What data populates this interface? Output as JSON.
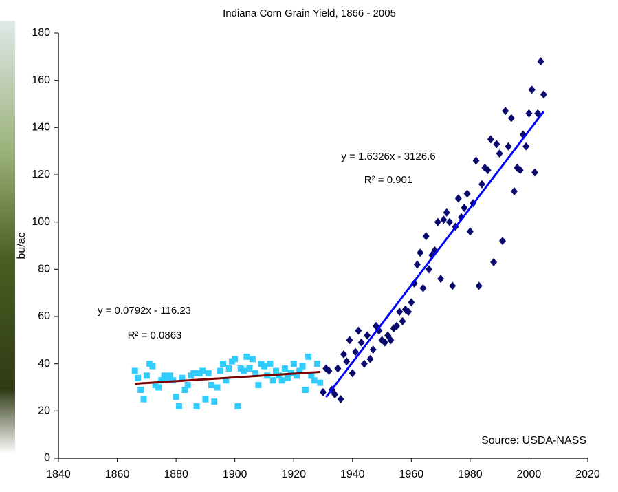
{
  "chart_data": {
    "type": "scatter",
    "title": "Indiana Corn Grain Yield, 1866 - 2005",
    "y_label": "bu/ac",
    "source": "Source: USDA-NASS",
    "xlim": [
      1840,
      2020
    ],
    "xticks": [
      1840,
      1860,
      1880,
      1900,
      1920,
      1940,
      1960,
      1980,
      2000,
      2020
    ],
    "ylim": [
      0,
      180
    ],
    "yticks": [
      0,
      20,
      40,
      60,
      80,
      100,
      120,
      140,
      160,
      180
    ],
    "grid": false,
    "series": [
      {
        "color": "#33ccff",
        "marker": "square",
        "x": [
          1866,
          1867,
          1868,
          1869,
          1870,
          1871,
          1872,
          1873,
          1874,
          1875,
          1876,
          1877,
          1878,
          1879,
          1880,
          1881,
          1882,
          1883,
          1884,
          1885,
          1886,
          1887,
          1888,
          1889,
          1890,
          1891,
          1892,
          1893,
          1894,
          1895,
          1896,
          1897,
          1898,
          1899,
          1900,
          1901,
          1902,
          1903,
          1904,
          1905,
          1906,
          1907,
          1908,
          1909,
          1910,
          1911,
          1912,
          1913,
          1914,
          1915,
          1916,
          1917,
          1918,
          1919,
          1920,
          1921,
          1922,
          1923,
          1924,
          1925,
          1926,
          1927,
          1928,
          1929
        ],
        "values": [
          37,
          34,
          29,
          25,
          35,
          40,
          39,
          31,
          30,
          33,
          35,
          34,
          35,
          33,
          26,
          22,
          34,
          29,
          31,
          35,
          36,
          22,
          36,
          37,
          25,
          36,
          31,
          24,
          30,
          37,
          40,
          33,
          38,
          41,
          42,
          22,
          38,
          37,
          43,
          38,
          42,
          36,
          31,
          40,
          39,
          35,
          40,
          33,
          37,
          35,
          33,
          38,
          34,
          36,
          40,
          35,
          37,
          39,
          29,
          43,
          35,
          33,
          40,
          32
        ]
      },
      {
        "color": "#0a0a6e",
        "marker": "diamond",
        "x": [
          1930,
          1931,
          1932,
          1933,
          1934,
          1935,
          1936,
          1937,
          1938,
          1939,
          1940,
          1941,
          1942,
          1943,
          1944,
          1945,
          1946,
          1947,
          1948,
          1949,
          1950,
          1951,
          1952,
          1953,
          1954,
          1955,
          1956,
          1957,
          1958,
          1959,
          1960,
          1961,
          1962,
          1963,
          1964,
          1965,
          1966,
          1967,
          1968,
          1969,
          1970,
          1971,
          1972,
          1973,
          1974,
          1975,
          1976,
          1977,
          1978,
          1979,
          1980,
          1981,
          1982,
          1983,
          1984,
          1985,
          1986,
          1987,
          1988,
          1989,
          1990,
          1991,
          1992,
          1993,
          1994,
          1995,
          1996,
          1997,
          1998,
          1999,
          2000,
          2001,
          2002,
          2003,
          2004,
          2005
        ],
        "values": [
          28,
          38,
          37,
          29,
          27,
          38,
          25,
          44,
          41,
          50,
          36,
          45,
          54,
          49,
          40,
          52,
          42,
          46,
          56,
          54,
          50,
          49,
          52,
          50,
          55,
          56,
          62,
          58,
          63,
          62,
          66,
          74,
          82,
          87,
          72,
          94,
          80,
          86,
          88,
          100,
          76,
          101,
          104,
          100,
          73,
          98,
          110,
          102,
          106,
          112,
          96,
          108,
          126,
          73,
          116,
          123,
          122,
          135,
          83,
          133,
          129,
          92,
          147,
          132,
          144,
          113,
          123,
          122,
          137,
          132,
          146,
          156,
          121,
          146,
          168,
          154
        ]
      }
    ],
    "trendlines": [
      {
        "color": "#800000",
        "x": [
          1866,
          1929
        ],
        "values": [
          31.56,
          36.55
        ],
        "equation": "y = 0.0792x - 116.23",
        "r2": "R² = 0.0863"
      },
      {
        "color": "#0000ff",
        "x": [
          1931,
          2005
        ],
        "values": [
          25.9,
          146.8
        ],
        "equation": "y = 1.6326x - 3126.6",
        "r2": "R² = 0.901"
      }
    ]
  }
}
